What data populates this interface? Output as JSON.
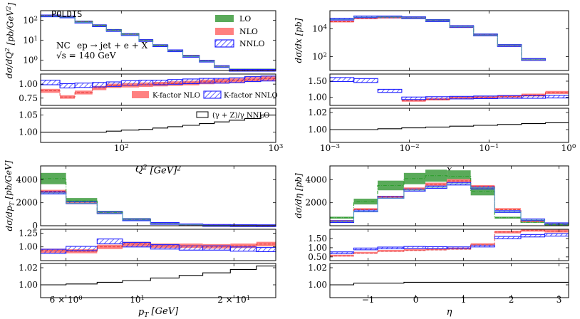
{
  "chart_data": [
    {
      "id": "q2",
      "type": "step-histogram",
      "title": "POLDIS",
      "xscale": "log",
      "xlim": [
        30,
        1000
      ],
      "xlabel": "Q^2 [GeV]^2",
      "x_ticks": [
        {
          "v": 100,
          "label": "10^2"
        },
        {
          "v": 1000,
          "label": "10^3"
        }
      ],
      "bins": [
        30,
        40,
        50,
        65,
        80,
        100,
        130,
        160,
        200,
        250,
        320,
        400,
        500,
        630,
        800,
        1000
      ],
      "main": {
        "ylabel": "dσ/dQ^2 [pb/GeV^2]",
        "yscale": "log",
        "ylim": [
          0.3,
          300
        ],
        "y_ticks": [
          {
            "v": 1,
            "label": "10^0"
          },
          {
            "v": 10,
            "label": "10^1"
          },
          {
            "v": 100,
            "label": "10^2"
          }
        ],
        "lo": [
          170,
          150,
          85,
          55,
          32,
          20,
          10,
          5.5,
          3.0,
          1.6,
          0.9,
          0.48,
          0.3,
          0.3,
          0.3
        ],
        "nlo": [
          165,
          145,
          80,
          52,
          30,
          19,
          9.5,
          5.2,
          2.9,
          1.55,
          0.88,
          0.47,
          0.3,
          0.3,
          0.3
        ],
        "nnlo": [
          160,
          142,
          78,
          51,
          29.5,
          18.5,
          9.3,
          5.1,
          2.85,
          1.5,
          0.86,
          0.46,
          0.3,
          0.3,
          0.3
        ]
      },
      "ratio": {
        "ylim": [
          0.62,
          1.18
        ],
        "y_ticks": [
          {
            "v": 0.75,
            "label": "0.75"
          },
          {
            "v": 1.0,
            "label": "1.00"
          }
        ],
        "nlo": [
          0.88,
          0.77,
          0.85,
          0.93,
          0.97,
          0.98,
          0.99,
          1.0,
          1.01,
          1.02,
          1.04,
          1.05,
          1.06,
          1.08,
          1.1
        ],
        "nnlo": [
          1.03,
          0.97,
          0.98,
          0.99,
          1.0,
          1.02,
          1.03,
          1.03,
          1.04,
          1.05,
          1.06,
          1.06,
          1.07,
          1.09,
          1.1
        ]
      },
      "ew": {
        "ylim": [
          0.97,
          1.07
        ],
        "y_ticks": [
          {
            "v": 1.0,
            "label": "1.00"
          },
          {
            "v": 1.05,
            "label": "1.05"
          }
        ],
        "values": [
          1.0,
          1.0,
          1.0,
          1.0,
          1.003,
          1.006,
          1.008,
          1.012,
          1.016,
          1.02,
          1.025,
          1.03,
          1.035,
          1.04,
          1.05
        ]
      },
      "legend": {
        "lo": "LO",
        "nlo": "NLO",
        "nnlo": "NNLO"
      },
      "process": "ep → jet + e + X",
      "nc": "NC",
      "sqrt_s": "√s = 140 GeV",
      "kfactor_nlo": "K-factor NLO",
      "kfactor_nnlo": "K-factor NNLO",
      "ew_label": "(γ + Z)/γ  NNLO"
    },
    {
      "id": "x",
      "type": "step-histogram",
      "xscale": "log",
      "xlim": [
        0.001,
        1
      ],
      "xlabel": "x",
      "x_ticks": [
        {
          "v": 0.001,
          "label": "10^−3"
        },
        {
          "v": 0.01,
          "label": "10^−2"
        },
        {
          "v": 0.1,
          "label": "10^−1"
        },
        {
          "v": 1,
          "label": "10^0"
        }
      ],
      "bins": [
        0.001,
        0.002,
        0.004,
        0.008,
        0.016,
        0.032,
        0.064,
        0.128,
        0.256,
        0.512,
        1.0
      ],
      "main": {
        "ylabel": "dσ/dx [pb]",
        "yscale": "log",
        "ylim": [
          10,
          200000
        ],
        "y_ticks": [
          {
            "v": 100,
            "label": "10^2"
          },
          {
            "v": 10000,
            "label": "10^4"
          }
        ],
        "lo": [
          null,
          null,
          65000,
          60000,
          38000,
          14000,
          3500,
          600,
          60,
          null
        ],
        "nlo": [
          32000,
          55000,
          62000,
          58000,
          36000,
          13500,
          3400,
          580,
          58,
          null
        ],
        "nnlo": [
          48000,
          70000,
          70000,
          60000,
          37000,
          14000,
          3500,
          600,
          60,
          null
        ]
      },
      "ratio": {
        "ylim": [
          0.75,
          1.72
        ],
        "y_ticks": [
          {
            "v": 1.0,
            "label": "1.00"
          },
          {
            "v": 1.5,
            "label": "1.50"
          }
        ],
        "nlo": [
          null,
          null,
          null,
          0.9,
          0.94,
          0.98,
          1.0,
          1.03,
          1.07,
          1.15
        ],
        "nnlo": [
          1.55,
          1.52,
          1.2,
          0.97,
          0.98,
          0.99,
          1.0,
          1.01,
          1.01,
          1.02
        ]
      },
      "ew": {
        "ylim": [
          0.985,
          1.025
        ],
        "y_ticks": [
          {
            "v": 1.0,
            "label": "1.00"
          },
          {
            "v": 1.02,
            "label": "1.02"
          }
        ],
        "values": [
          1.0,
          1.0,
          1.001,
          1.002,
          1.003,
          1.004,
          1.005,
          1.006,
          1.007,
          1.008
        ]
      }
    },
    {
      "id": "pt",
      "type": "step-histogram",
      "xscale": "log",
      "xlim": [
        5,
        27
      ],
      "xlabel": "p_T [GeV]",
      "x_ticks": [
        {
          "v": 6,
          "label": "6 × 10^0"
        },
        {
          "v": 10,
          "label": "10^1"
        },
        {
          "v": 20,
          "label": "2 × 10^1"
        }
      ],
      "bins": [
        5,
        6,
        7.5,
        9,
        11,
        13.5,
        16,
        19.5,
        23.5,
        27
      ],
      "main": {
        "ylabel": "dσ/dp_T [pb/GeV]",
        "yscale": "linear",
        "ylim": [
          0,
          5200
        ],
        "y_ticks": [
          {
            "v": 0,
            "label": "0"
          },
          {
            "v": 2000,
            "label": "2000"
          },
          {
            "v": 4000,
            "label": "4000"
          }
        ],
        "lo": [
          4100,
          2150,
          1150,
          520,
          200,
          80,
          30,
          12,
          5
        ],
        "nlo": [
          3000,
          1950,
          1100,
          500,
          195,
          78,
          30,
          12,
          5
        ],
        "nnlo": [
          2850,
          1950,
          1100,
          500,
          195,
          78,
          30,
          12,
          5
        ]
      },
      "ratio": {
        "ylim": [
          0.75,
          1.32
        ],
        "y_ticks": [
          {
            "v": 1.0,
            "label": "1.00"
          },
          {
            "v": 1.25,
            "label": "1.25"
          }
        ],
        "nlo": [
          0.93,
          0.92,
          1.0,
          1.05,
          1.02,
          1.02,
          1.01,
          1.02,
          1.05
        ],
        "nnlo": [
          0.92,
          0.97,
          1.1,
          1.04,
          1.0,
          0.98,
          0.98,
          0.96,
          0.95
        ]
      },
      "ew": {
        "ylim": [
          0.985,
          1.025
        ],
        "y_ticks": [
          {
            "v": 1.0,
            "label": "1.00"
          },
          {
            "v": 1.02,
            "label": "1.02"
          }
        ],
        "values": [
          1.0,
          1.001,
          1.003,
          1.005,
          1.008,
          1.011,
          1.014,
          1.018,
          1.022
        ]
      }
    },
    {
      "id": "eta",
      "type": "step-histogram",
      "xscale": "linear",
      "xlim": [
        -1.8,
        3.2
      ],
      "xlabel": "η",
      "x_ticks": [
        {
          "v": -1,
          "label": "−1"
        },
        {
          "v": 0,
          "label": "0"
        },
        {
          "v": 1,
          "label": "1"
        },
        {
          "v": 2,
          "label": "2"
        },
        {
          "v": 3,
          "label": "3"
        }
      ],
      "bins": [
        -1.8,
        -1.3,
        -0.8,
        -0.25,
        0.2,
        0.65,
        1.15,
        1.65,
        2.2,
        2.7,
        3.2
      ],
      "main": {
        "ylabel": "dσ/dη [pb]",
        "yscale": "linear",
        "ylim": [
          0,
          5200
        ],
        "y_ticks": [
          {
            "v": 2000,
            "label": "2000"
          },
          {
            "v": 4000,
            "label": "4000"
          }
        ],
        "lo": [
          700,
          2100,
          3500,
          4100,
          4350,
          4300,
          3000,
          700,
          300,
          100
        ],
        "nlo": [
          400,
          1400,
          2500,
          3200,
          3600,
          3900,
          3400,
          1400,
          400,
          150
        ],
        "nnlo": [
          350,
          1250,
          2400,
          3100,
          3350,
          3650,
          3300,
          1200,
          500,
          170
        ]
      },
      "ratio": {
        "ylim": [
          0.3,
          2.0
        ],
        "y_ticks": [
          {
            "v": 0.5,
            "label": "0.50"
          },
          {
            "v": 1.0,
            "label": "1.00"
          },
          {
            "v": 1.5,
            "label": "1.50"
          }
        ],
        "nlo": [
          0.55,
          0.7,
          0.8,
          0.85,
          0.88,
          0.92,
          1.15,
          1.85,
          1.95,
          1.9
        ],
        "nnlo": [
          0.7,
          0.9,
          0.95,
          0.98,
          0.97,
          0.96,
          1.05,
          1.55,
          1.65,
          1.7
        ]
      },
      "ew": {
        "ylim": [
          0.985,
          1.025
        ],
        "y_ticks": [
          {
            "v": 1.0,
            "label": "1.00"
          },
          {
            "v": 1.02,
            "label": "1.02"
          }
        ],
        "values": [
          1.0,
          1.002,
          1.002,
          1.003,
          1.003,
          1.003,
          1.003,
          1.003,
          1.003,
          1.003
        ]
      }
    }
  ],
  "colors": {
    "lo": "#2ca02c",
    "nlo": "#ff4040",
    "nnlo": "#1f1fff",
    "lo_fill": "#5aaa5a",
    "nlo_fill": "#ff8080",
    "black": "#000000"
  }
}
